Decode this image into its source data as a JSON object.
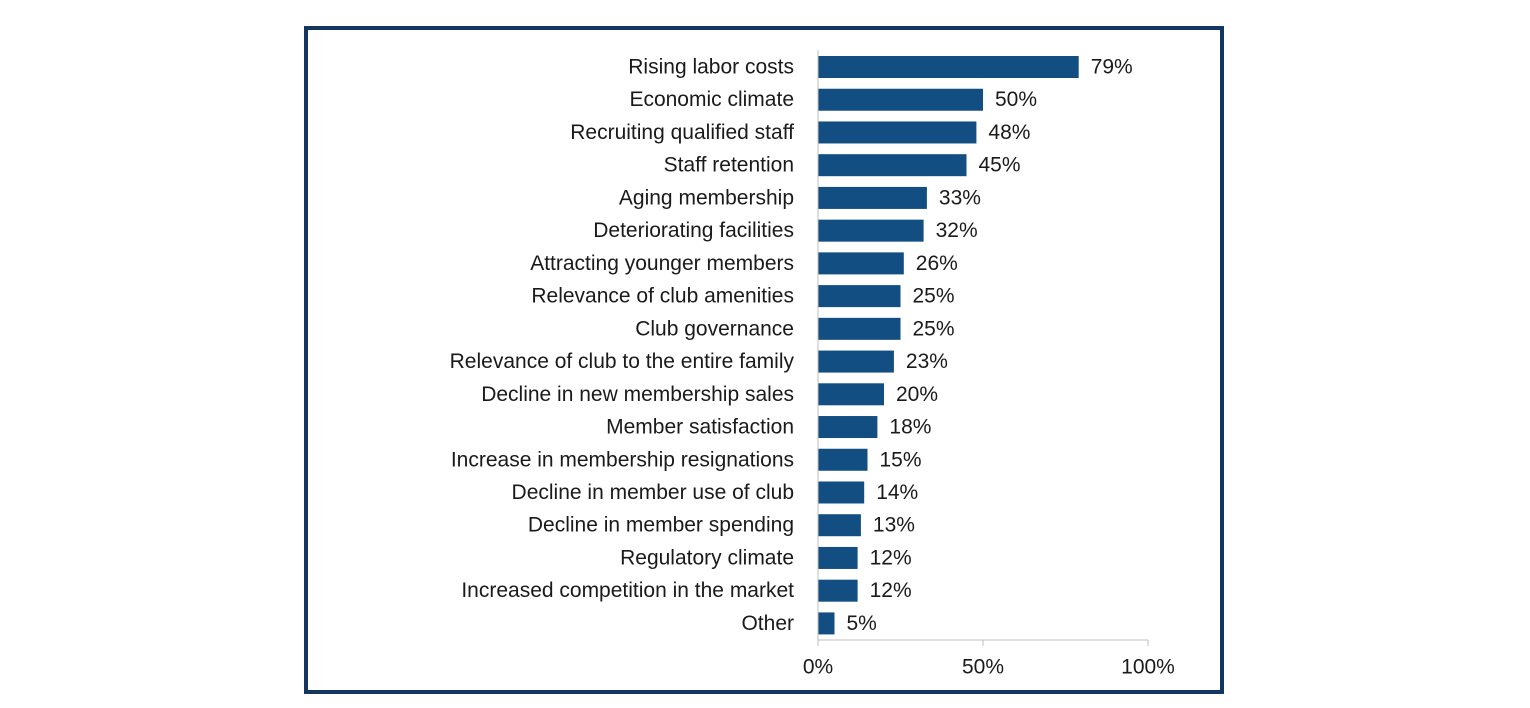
{
  "chart_data": {
    "type": "bar",
    "orientation": "horizontal",
    "title": "",
    "xlabel": "",
    "ylabel": "",
    "xlim": [
      0,
      100
    ],
    "x_ticks": [
      0,
      50,
      100
    ],
    "x_tick_labels": [
      "0%",
      "50%",
      "100%"
    ],
    "grid": false,
    "bar_color": "#124e82",
    "categories": [
      "Rising labor costs",
      "Economic climate",
      "Recruiting qualified staff",
      "Staff retention",
      "Aging membership",
      "Deteriorating facilities",
      "Attracting younger members",
      "Relevance of club amenities",
      "Club governance",
      "Relevance of club to the entire family",
      "Decline in new membership sales",
      "Member satisfaction",
      "Increase in membership resignations",
      "Decline in member use of club",
      "Decline in member spending",
      "Regulatory climate",
      "Increased competition in the market",
      "Other"
    ],
    "values": [
      79,
      50,
      48,
      45,
      33,
      32,
      26,
      25,
      25,
      23,
      20,
      18,
      15,
      14,
      13,
      12,
      12,
      5
    ],
    "value_labels": [
      "79%",
      "50%",
      "48%",
      "45%",
      "33%",
      "32%",
      "26%",
      "25%",
      "25%",
      "23%",
      "20%",
      "18%",
      "15%",
      "14%",
      "13%",
      "12%",
      "12%",
      "5%"
    ]
  },
  "colors": {
    "frame_border": "#12365f",
    "axis": "#bfbfbf",
    "text": "#1a1a1a"
  }
}
